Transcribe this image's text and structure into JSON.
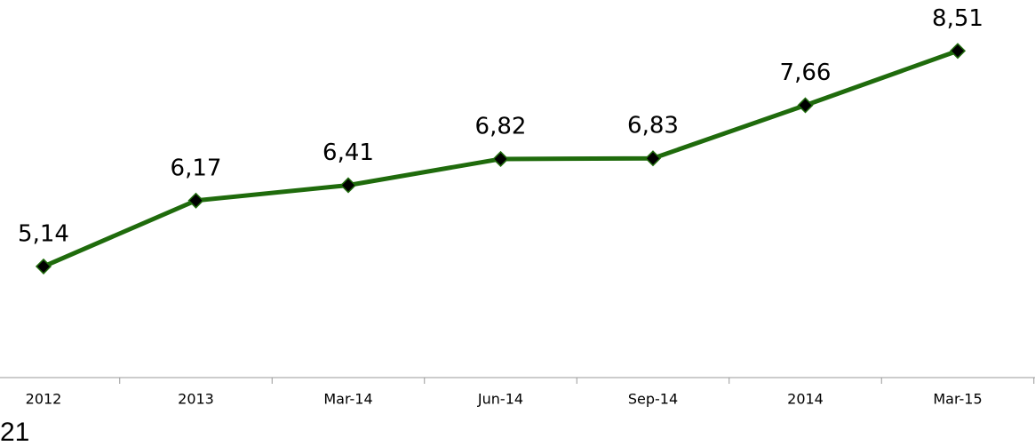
{
  "chart_data": {
    "type": "line",
    "categories": [
      "2012",
      "2013",
      "Mar-14",
      "Jun-14",
      "Sep-14",
      "2014",
      "Mar-15"
    ],
    "series": [
      {
        "name": null,
        "color": "#1f6b0c",
        "values": [
          5.14,
          6.17,
          6.41,
          6.82,
          6.83,
          7.66,
          8.51
        ],
        "value_labels": [
          "5,14",
          "6,17",
          "6,41",
          "6,82",
          "6,83",
          "7,66",
          "8,51"
        ]
      }
    ],
    "ylim": [
      4,
      9
    ]
  },
  "page_number": "21"
}
